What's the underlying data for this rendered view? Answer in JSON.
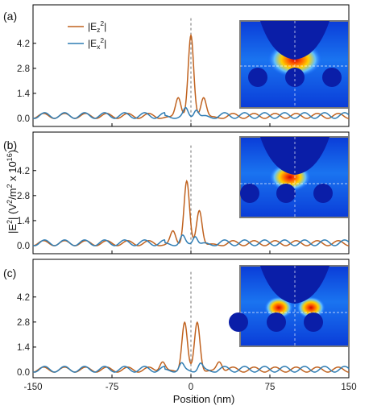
{
  "chart_data": {
    "type": "line",
    "xlabel": "Position (nm)",
    "ylabel": "|E²| (V²/m² x 10¹⁶)",
    "xlim": [
      -150,
      150
    ],
    "ylim": [
      -0.2,
      5.8
    ],
    "xticks": [
      -150,
      -75,
      0,
      75,
      150
    ],
    "xtick_labels": [
      "-150",
      "-75",
      "0",
      "75",
      "150"
    ],
    "yticks": [
      0.0,
      1.4,
      2.8,
      4.2
    ],
    "ytick_labels": [
      "0.0",
      "1.4",
      "2.8",
      "4.2"
    ],
    "legend": {
      "placement": "top-left",
      "entries": [
        "|Ez²|",
        "|Ex²|"
      ]
    },
    "colors": {
      "Ez": "#c0621f",
      "Ex": "#2f7db4",
      "center_line": "#888888",
      "inset_frame": "#7a7a7a"
    },
    "panels": [
      {
        "label": "(a)",
        "series": [
          {
            "name": "|Ez²|",
            "peaks": [
              {
                "x": 0,
                "y": 4.6
              },
              {
                "x": -12,
                "y": 1.2
              },
              {
                "x": 12,
                "y": 1.2
              }
            ]
          },
          {
            "name": "|Ex²|",
            "peaks": [
              {
                "x": -5,
                "y": 0.5
              },
              {
                "x": 5,
                "y": 0.5
              }
            ]
          }
        ]
      },
      {
        "label": "(b)",
        "series": [
          {
            "name": "|Ez²|",
            "peaks": [
              {
                "x": -4,
                "y": 3.6
              },
              {
                "x": 8,
                "y": 2.0
              },
              {
                "x": -17,
                "y": 0.8
              }
            ]
          },
          {
            "name": "|Ex²|",
            "peaks": [
              {
                "x": -8,
                "y": 0.5
              },
              {
                "x": 4,
                "y": 0.55
              }
            ]
          }
        ]
      },
      {
        "label": "(c)",
        "series": [
          {
            "name": "|Ez²|",
            "peaks": [
              {
                "x": -6,
                "y": 2.8
              },
              {
                "x": 6,
                "y": 2.8
              },
              {
                "x": -27,
                "y": 0.6
              },
              {
                "x": 27,
                "y": 0.6
              }
            ]
          },
          {
            "name": "|Ex²|",
            "peaks": [
              {
                "x": -9,
                "y": 0.45
              },
              {
                "x": 9,
                "y": 0.45
              }
            ]
          }
        ]
      }
    ]
  }
}
